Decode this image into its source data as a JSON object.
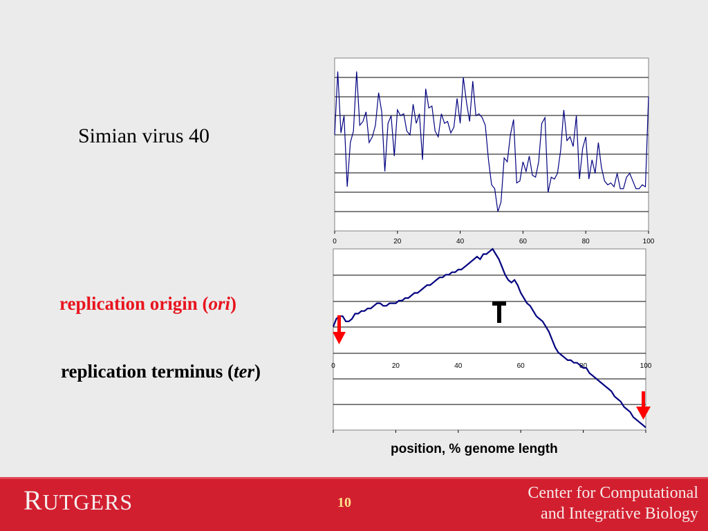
{
  "slide": {
    "title": "Simian virus 40",
    "ori_label_prefix": "replication origin (",
    "ori_label_italic": "ori",
    "ori_label_suffix": ")",
    "ter_label_prefix": "replication terminus (",
    "ter_label_italic": "ter",
    "ter_label_suffix": ")",
    "xaxis_label": "position, % genome length",
    "page_number": "10"
  },
  "footer": {
    "logo_first": "R",
    "logo_rest": "UTGERS",
    "center_line1": "Center for Computational",
    "center_line2": "and Integrative Biology"
  },
  "colors": {
    "series_line": "#00007f",
    "arrow": "#ff0000",
    "footer_bg": "#d21f2f",
    "ori_text": "#e8141e"
  },
  "chart_data": [
    {
      "type": "line",
      "x_ticks": [
        0,
        20,
        40,
        60,
        80,
        100
      ],
      "xlim": [
        0,
        100
      ],
      "ylim": [
        0,
        9
      ],
      "grid": true,
      "x": [
        0,
        1,
        2,
        3,
        4,
        5,
        6,
        7,
        8,
        9,
        10,
        11,
        12,
        13,
        14,
        15,
        16,
        17,
        18,
        19,
        20,
        21,
        22,
        23,
        24,
        25,
        26,
        27,
        28,
        29,
        30,
        31,
        32,
        33,
        34,
        35,
        36,
        37,
        38,
        39,
        40,
        41,
        42,
        43,
        44,
        45,
        46,
        47,
        48,
        49,
        50,
        51,
        52,
        53,
        54,
        55,
        56,
        57,
        58,
        59,
        60,
        61,
        62,
        63,
        64,
        65,
        66,
        67,
        68,
        69,
        70,
        71,
        72,
        73,
        74,
        75,
        76,
        77,
        78,
        79,
        80,
        81,
        82,
        83,
        84,
        85,
        86,
        87,
        88,
        89,
        90,
        91,
        92,
        93,
        94,
        95,
        96,
        97,
        98,
        99,
        100
      ],
      "values": [
        5.0,
        8.3,
        5.1,
        6.0,
        2.3,
        4.6,
        5.2,
        8.3,
        5.5,
        5.7,
        6.2,
        4.6,
        4.9,
        5.5,
        7.2,
        6.2,
        3.1,
        5.6,
        6.0,
        3.9,
        6.3,
        6.0,
        6.1,
        5.2,
        5.0,
        6.6,
        5.6,
        6.1,
        3.7,
        7.4,
        6.4,
        6.5,
        5.2,
        4.9,
        6.1,
        5.6,
        5.7,
        5.1,
        5.4,
        6.9,
        5.6,
        8.0,
        6.7,
        5.7,
        7.8,
        6.0,
        6.1,
        5.9,
        5.5,
        3.7,
        2.4,
        2.2,
        1.0,
        1.5,
        3.8,
        3.6,
        5.0,
        5.8,
        2.5,
        2.6,
        3.6,
        3.1,
        3.9,
        2.9,
        2.8,
        3.6,
        5.6,
        5.9,
        2.0,
        2.8,
        2.7,
        3.0,
        4.2,
        6.3,
        4.7,
        4.9,
        4.4,
        6.0,
        2.7,
        4.3,
        4.9,
        2.7,
        3.7,
        3.0,
        4.6,
        3.3,
        2.6,
        2.4,
        2.5,
        2.3,
        3.0,
        2.2,
        2.2,
        2.8,
        3.0,
        2.6,
        2.2,
        2.2,
        2.4,
        2.3,
        7.0
      ]
    },
    {
      "type": "line",
      "x_ticks": [
        0,
        20,
        40,
        60,
        80,
        100
      ],
      "xlim": [
        0,
        100
      ],
      "ylim": [
        -4,
        3
      ],
      "grid": true,
      "x": [
        0,
        1,
        2,
        3,
        4,
        5,
        6,
        7,
        8,
        9,
        10,
        11,
        12,
        13,
        14,
        15,
        16,
        17,
        18,
        19,
        20,
        21,
        22,
        23,
        24,
        25,
        26,
        27,
        28,
        29,
        30,
        31,
        32,
        33,
        34,
        35,
        36,
        37,
        38,
        39,
        40,
        41,
        42,
        43,
        44,
        45,
        46,
        47,
        48,
        49,
        50,
        51,
        52,
        53,
        54,
        55,
        56,
        57,
        58,
        59,
        60,
        61,
        62,
        63,
        64,
        65,
        66,
        67,
        68,
        69,
        70,
        71,
        72,
        73,
        74,
        75,
        76,
        77,
        78,
        79,
        80,
        81,
        82,
        83,
        84,
        85,
        86,
        87,
        88,
        89,
        90,
        91,
        92,
        93,
        94,
        95,
        96,
        97,
        98,
        99,
        100
      ],
      "values": [
        0.0,
        0.3,
        0.4,
        0.4,
        0.2,
        0.2,
        0.3,
        0.5,
        0.5,
        0.6,
        0.6,
        0.7,
        0.7,
        0.8,
        0.9,
        0.9,
        0.8,
        0.8,
        0.9,
        0.9,
        0.9,
        1.0,
        1.0,
        1.1,
        1.1,
        1.2,
        1.3,
        1.3,
        1.4,
        1.5,
        1.6,
        1.6,
        1.7,
        1.8,
        1.9,
        1.9,
        2.0,
        2.0,
        2.1,
        2.1,
        2.2,
        2.2,
        2.3,
        2.4,
        2.5,
        2.6,
        2.7,
        2.6,
        2.8,
        2.8,
        2.9,
        3.0,
        2.8,
        2.6,
        2.3,
        2.0,
        1.8,
        1.7,
        1.8,
        1.6,
        1.3,
        1.1,
        0.9,
        0.8,
        0.6,
        0.4,
        0.3,
        0.2,
        0.0,
        -0.2,
        -0.5,
        -0.8,
        -1.0,
        -1.1,
        -1.2,
        -1.3,
        -1.3,
        -1.4,
        -1.4,
        -1.5,
        -1.6,
        -1.6,
        -1.8,
        -1.9,
        -2.0,
        -2.1,
        -2.2,
        -2.3,
        -2.4,
        -2.5,
        -2.7,
        -2.8,
        -2.9,
        -3.1,
        -3.2,
        -3.3,
        -3.5,
        -3.6,
        -3.7,
        -3.8,
        -3.9
      ]
    }
  ]
}
